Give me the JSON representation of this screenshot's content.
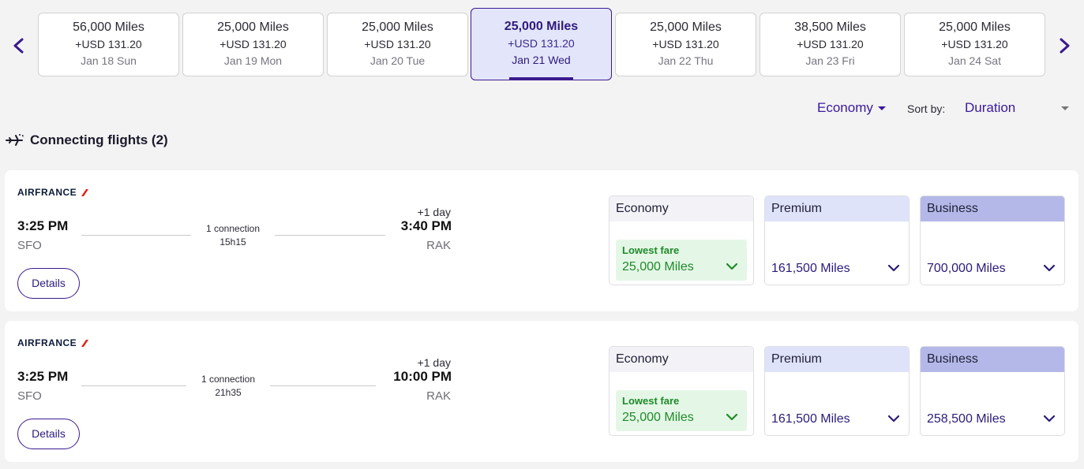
{
  "date_strip": {
    "cards": [
      {
        "miles": "56,000 Miles",
        "usd": "+USD 131.20",
        "date": "Jan 18 Sun"
      },
      {
        "miles": "25,000 Miles",
        "usd": "+USD 131.20",
        "date": "Jan 19 Mon"
      },
      {
        "miles": "25,000 Miles",
        "usd": "+USD 131.20",
        "date": "Jan 20 Tue"
      },
      {
        "miles": "25,000 Miles",
        "usd": "+USD 131.20",
        "date": "Jan 21 Wed"
      },
      {
        "miles": "25,000 Miles",
        "usd": "+USD 131.20",
        "date": "Jan 22 Thu"
      },
      {
        "miles": "38,500 Miles",
        "usd": "+USD 131.20",
        "date": "Jan 23 Fri"
      },
      {
        "miles": "25,000 Miles",
        "usd": "+USD 131.20",
        "date": "Jan 24 Sat"
      }
    ],
    "selected_index": 3,
    "prev_icon": "chevron-left-icon",
    "next_icon": "chevron-right-icon"
  },
  "toolbar": {
    "cabin": "Economy",
    "sort_label": "Sort by:",
    "sort_value": "Duration"
  },
  "section": {
    "title": "Connecting flights (2)",
    "icon": "connecting-flight-icon"
  },
  "flights": [
    {
      "airline": "AIRFRANCE",
      "dep_time": "3:25 PM",
      "dep_code": "SFO",
      "connection": "1 connection",
      "duration": "15h15",
      "plus_day": "+1 day",
      "arr_time": "3:40 PM",
      "arr_code": "RAK",
      "details_label": "Details",
      "fares": {
        "economy": {
          "label": "Economy",
          "lowest_label": "Lowest fare",
          "miles": "25,000 Miles"
        },
        "premium": {
          "label": "Premium",
          "miles": "161,500 Miles"
        },
        "business": {
          "label": "Business",
          "miles": "700,000 Miles"
        }
      }
    },
    {
      "airline": "AIRFRANCE",
      "dep_time": "3:25 PM",
      "dep_code": "SFO",
      "connection": "1 connection",
      "duration": "21h35",
      "plus_day": "+1 day",
      "arr_time": "10:00 PM",
      "arr_code": "RAK",
      "details_label": "Details",
      "fares": {
        "economy": {
          "label": "Economy",
          "lowest_label": "Lowest fare",
          "miles": "25,000 Miles"
        },
        "premium": {
          "label": "Premium",
          "miles": "161,500 Miles"
        },
        "business": {
          "label": "Business",
          "miles": "258,500 Miles"
        }
      }
    }
  ],
  "colors": {
    "accent": "#3a1a8e",
    "selected_bg": "#e3e5fb",
    "lowest_fare_green": "#1f8a2a",
    "lowest_fare_bg": "#e4f7e6",
    "airfrance_red": "#e0231b"
  }
}
